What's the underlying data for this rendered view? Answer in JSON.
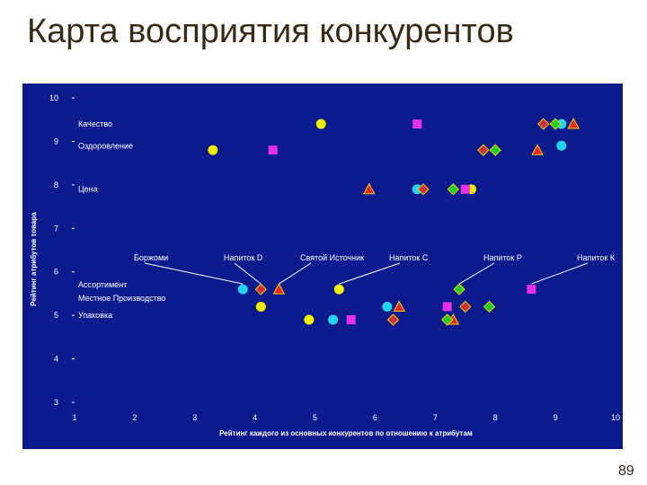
{
  "slide": {
    "title": "Карта восприятия конкурентов",
    "page_number": "89"
  },
  "chart_data": {
    "type": "scatter",
    "title": "",
    "xlabel": "Рейтинг каждого из основных конкурентов по отношению к атрибутам",
    "ylabel": "Рейтинг атрибутов товара",
    "xlim": [
      1,
      10
    ],
    "ylim": [
      3,
      10
    ],
    "x_ticks": [
      "1",
      "2",
      "3",
      "4",
      "5",
      "6",
      "7",
      "8",
      "9",
      "10"
    ],
    "y_ticks": [
      "3",
      "4",
      "5",
      "6",
      "7",
      "8",
      "9",
      "10"
    ],
    "grid": false,
    "attributes": [
      {
        "label": "Качество",
        "y": 9.4
      },
      {
        "label": "Оздоровление",
        "y": 8.9
      },
      {
        "label": "Цена",
        "y": 7.9
      },
      {
        "label": "Ассортимент",
        "y": 5.7
      },
      {
        "label": "Местное Производство",
        "y": 5.4
      },
      {
        "label": "Упаковка",
        "y": 5.0
      }
    ],
    "series": [
      {
        "name": "Боржоми",
        "marker": "circle",
        "color": "#22d4ee",
        "points": [
          [
            9.1,
            9.4
          ],
          [
            9.1,
            8.9
          ],
          [
            6.7,
            7.9
          ],
          [
            3.8,
            5.6
          ],
          [
            6.2,
            5.2
          ],
          [
            5.3,
            4.9
          ]
        ]
      },
      {
        "name": "Напиток D",
        "marker": "diamond",
        "color": "#c8323c",
        "points": [
          [
            8.8,
            9.4
          ],
          [
            7.8,
            8.8
          ],
          [
            6.8,
            7.9
          ],
          [
            4.1,
            5.6
          ],
          [
            7.5,
            5.2
          ],
          [
            6.3,
            4.9
          ]
        ]
      },
      {
        "name": "Святой Источник",
        "marker": "triangle",
        "color": "#e8281e",
        "points": [
          [
            9.3,
            9.4
          ],
          [
            8.7,
            8.8
          ],
          [
            5.9,
            7.9
          ],
          [
            4.4,
            5.6
          ],
          [
            6.4,
            5.2
          ],
          [
            7.3,
            4.9
          ]
        ]
      },
      {
        "name": "Напиток С",
        "marker": "circle",
        "color": "#f0f000",
        "points": [
          [
            5.1,
            9.4
          ],
          [
            3.3,
            8.8
          ],
          [
            7.6,
            7.9
          ],
          [
            5.4,
            5.6
          ],
          [
            4.1,
            5.2
          ],
          [
            4.9,
            4.9
          ]
        ]
      },
      {
        "name": "Напиток Р",
        "marker": "diamond",
        "color": "#22cc22",
        "points": [
          [
            9.0,
            9.4
          ],
          [
            8.0,
            8.8
          ],
          [
            7.3,
            7.9
          ],
          [
            7.4,
            5.6
          ],
          [
            7.9,
            5.2
          ],
          [
            7.2,
            4.9
          ]
        ]
      },
      {
        "name": "Напиток К",
        "marker": "square",
        "color": "#e830e8",
        "points": [
          [
            6.7,
            9.4
          ],
          [
            4.3,
            8.8
          ],
          [
            7.5,
            7.9
          ],
          [
            8.6,
            5.6
          ],
          [
            7.2,
            5.2
          ],
          [
            5.6,
            4.9
          ]
        ]
      }
    ]
  }
}
